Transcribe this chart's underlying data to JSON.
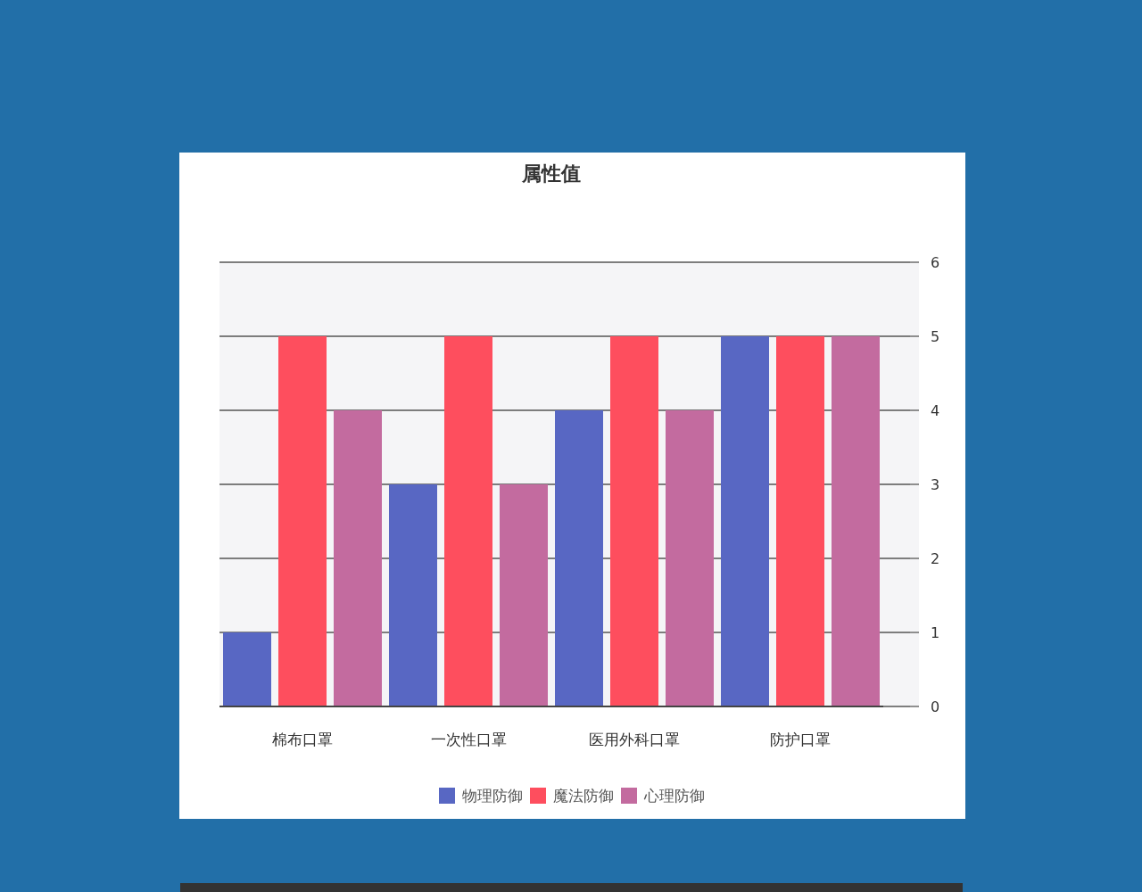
{
  "chart_data": {
    "type": "bar",
    "title": "属性值",
    "categories": [
      "棉布口罩",
      "一次性口罩",
      "医用外科口罩",
      "防护口罩"
    ],
    "series": [
      {
        "name": "物理防御",
        "color": "#5867c3",
        "values": [
          1,
          3,
          4,
          5
        ]
      },
      {
        "name": "魔法防御",
        "color": "#fe4e5e",
        "values": [
          5,
          5,
          5,
          5
        ]
      },
      {
        "name": "心理防御",
        "color": "#c36b9f",
        "values": [
          4,
          3,
          4,
          5
        ]
      }
    ],
    "ylim": [
      0,
      6
    ],
    "yticks": [
      0,
      1,
      2,
      3,
      4,
      5,
      6
    ],
    "grid": "y",
    "legend": "bottom"
  }
}
